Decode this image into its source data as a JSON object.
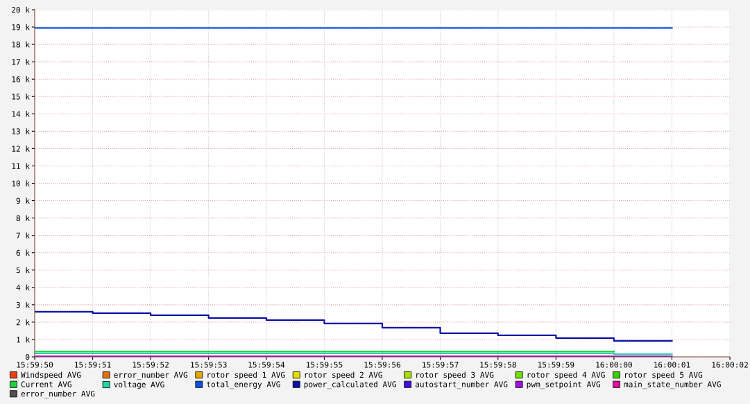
{
  "chart_data": {
    "type": "step",
    "x": [
      15.997222,
      15.9975,
      15.997778,
      15.998056,
      15.998333,
      15.998611,
      15.998889,
      15.999167,
      15.999444,
      15.999722,
      16.0,
      16.000278
    ],
    "series": [
      {
        "name": "Windspeed AVG",
        "color": "#e8400c",
        "values": [
          null,
          null,
          null,
          null,
          null,
          null,
          null,
          null,
          null,
          null,
          null,
          null
        ]
      },
      {
        "name": "error_number AVG",
        "color": "#e07010",
        "values": [
          null,
          null,
          null,
          null,
          null,
          null,
          null,
          null,
          null,
          null,
          null,
          null
        ]
      },
      {
        "name": "rotor speed 1 AVG",
        "color": "#e0a800",
        "values": [
          null,
          null,
          null,
          null,
          null,
          null,
          null,
          null,
          null,
          null,
          null,
          null
        ]
      },
      {
        "name": "rotor speed 2 AVG",
        "color": "#e0e000",
        "values": [
          null,
          null,
          null,
          null,
          null,
          null,
          null,
          null,
          null,
          null,
          null,
          null
        ]
      },
      {
        "name": "rotor speed 3 AVG",
        "color": "#a8e000",
        "values": [
          null,
          null,
          null,
          null,
          null,
          null,
          null,
          null,
          null,
          null,
          null,
          null
        ]
      },
      {
        "name": "rotor speed 4 AVG",
        "color": "#70e000",
        "values": [
          null,
          null,
          null,
          null,
          null,
          null,
          null,
          null,
          null,
          null,
          null,
          null
        ]
      },
      {
        "name": "rotor speed 5 AVG",
        "color": "#38d000",
        "values": [
          null,
          null,
          null,
          null,
          null,
          null,
          null,
          null,
          null,
          null,
          null,
          null
        ]
      },
      {
        "name": "Current AVG",
        "color": "#20d040",
        "x": [
          15.997222,
          16.0
        ],
        "values": [
          300,
          300
        ]
      },
      {
        "name": "voltage AVG",
        "color": "#20d8a0",
        "values": [
          200,
          200,
          200,
          200,
          200,
          200,
          200,
          200,
          200,
          200,
          160,
          160
        ]
      },
      {
        "name": "total_energy AVG",
        "color": "#1050e0",
        "values": [
          18950,
          18950,
          18950,
          18950,
          18950,
          18950,
          18950,
          18950,
          18950,
          18950,
          18950,
          18950
        ]
      },
      {
        "name": "power_calculated AVG",
        "color": "#0c10a8",
        "values": [
          2600,
          2520,
          2400,
          2240,
          2120,
          1920,
          1680,
          1360,
          1240,
          1080,
          920,
          920
        ]
      },
      {
        "name": "autostart_number AVG",
        "color": "#4010e0",
        "values": [
          null,
          null,
          null,
          null,
          null,
          null,
          null,
          null,
          null,
          null,
          null,
          null
        ]
      },
      {
        "name": "pwm_setpoint AVG",
        "color": "#a010e0",
        "values": [
          40,
          40,
          40,
          40,
          40,
          40,
          40,
          40,
          40,
          40,
          40,
          40
        ]
      },
      {
        "name": "main_state_number AVG",
        "color": "#e010a0",
        "values": [
          null,
          null,
          null,
          null,
          null,
          null,
          null,
          null,
          null,
          null,
          null,
          null
        ]
      },
      {
        "name": "error_number AVG",
        "color": "#505050",
        "values": [
          null,
          null,
          null,
          null,
          null,
          null,
          null,
          null,
          null,
          null,
          null,
          null
        ]
      }
    ],
    "xlim": [
      15.997222,
      16.000556
    ],
    "xticks": [
      {
        "value": 15.997222,
        "label": "15:59:50"
      },
      {
        "value": 15.9975,
        "label": "15:59:51"
      },
      {
        "value": 15.997778,
        "label": "15:59:52"
      },
      {
        "value": 15.998056,
        "label": "15:59:53"
      },
      {
        "value": 15.998333,
        "label": "15:59:54"
      },
      {
        "value": 15.998611,
        "label": "15:59:55"
      },
      {
        "value": 15.998889,
        "label": "15:59:56"
      },
      {
        "value": 15.999167,
        "label": "15:59:57"
      },
      {
        "value": 15.999444,
        "label": "15:59:58"
      },
      {
        "value": 15.999722,
        "label": "15:59:59"
      },
      {
        "value": 16.0,
        "label": "16:00:00"
      },
      {
        "value": 16.000278,
        "label": "16:00:01"
      },
      {
        "value": 16.000556,
        "label": "16:00:02"
      }
    ],
    "ylim": [
      0,
      20000
    ],
    "yticks": [
      {
        "value": 0,
        "label": "0"
      },
      {
        "value": 1000,
        "label": "1 k"
      },
      {
        "value": 2000,
        "label": "2 k"
      },
      {
        "value": 3000,
        "label": "3 k"
      },
      {
        "value": 4000,
        "label": "4 k"
      },
      {
        "value": 5000,
        "label": "5 k"
      },
      {
        "value": 6000,
        "label": "6 k"
      },
      {
        "value": 7000,
        "label": "7 k"
      },
      {
        "value": 8000,
        "label": "8 k"
      },
      {
        "value": 9000,
        "label": "9 k"
      },
      {
        "value": 10000,
        "label": "10 k"
      },
      {
        "value": 11000,
        "label": "11 k"
      },
      {
        "value": 12000,
        "label": "12 k"
      },
      {
        "value": 13000,
        "label": "13 k"
      },
      {
        "value": 14000,
        "label": "14 k"
      },
      {
        "value": 15000,
        "label": "15 k"
      },
      {
        "value": 16000,
        "label": "16 k"
      },
      {
        "value": 17000,
        "label": "17 k"
      },
      {
        "value": 18000,
        "label": "18 k"
      },
      {
        "value": 19000,
        "label": "19 k"
      },
      {
        "value": 20000,
        "label": "20 k"
      }
    ],
    "grid": true,
    "legend": "bottom",
    "line_style": "solid"
  }
}
